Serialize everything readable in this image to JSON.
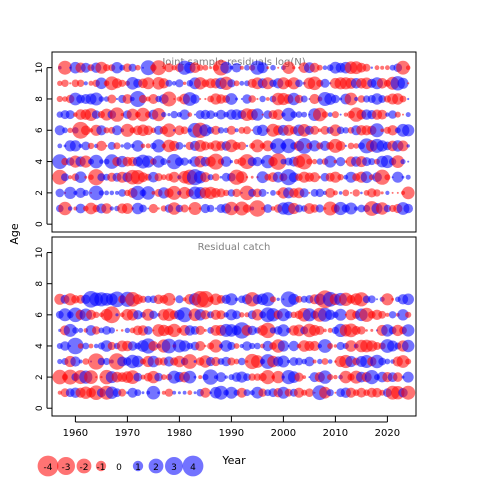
{
  "chart_data": {
    "type": "scatter",
    "subtype": "bubble",
    "ylabel": "Age",
    "xlabel": "Year",
    "x_ticks": [
      1960,
      1970,
      1980,
      1990,
      2000,
      2010,
      2020
    ],
    "y_ticks": [
      0,
      2,
      4,
      6,
      8,
      10
    ],
    "xlim": [
      1955.5,
      2025.5
    ],
    "ylim": [
      -0.5,
      11
    ],
    "colors": {
      "positive": "#0000ff",
      "negative": "#ff0000",
      "title": "#808080"
    },
    "panels": [
      {
        "title": "Joint sample residuals log(N)",
        "ages": [
          1,
          2,
          3,
          4,
          5,
          6,
          7,
          8,
          9,
          10
        ],
        "year_range": [
          1957,
          2024
        ],
        "seed": 7
      },
      {
        "title": "Residual catch",
        "ages": [
          1,
          2,
          3,
          4,
          5,
          6,
          7
        ],
        "year_range": [
          1957,
          2024
        ],
        "seed": 13
      }
    ],
    "legend": {
      "values": [
        -4,
        -3,
        -2,
        -1,
        0,
        1,
        2,
        3,
        4
      ],
      "labels": [
        "-4",
        "-3",
        "-2",
        "-1",
        "0",
        "1",
        "2",
        "3",
        "4"
      ]
    }
  }
}
